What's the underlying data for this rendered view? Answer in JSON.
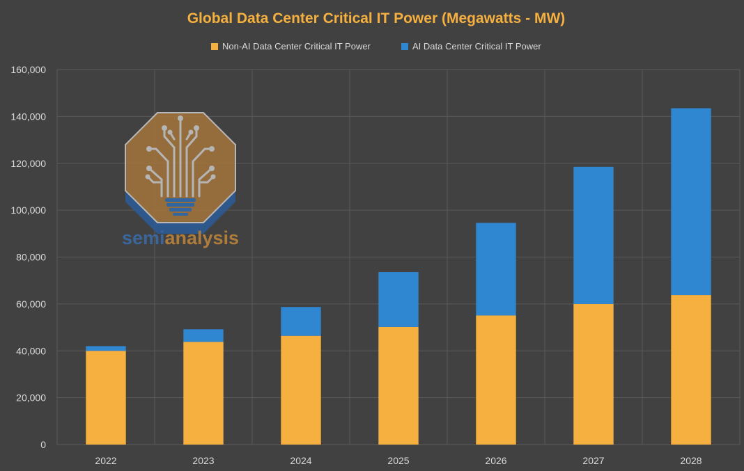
{
  "chart_data": {
    "type": "bar",
    "stacked": true,
    "title": "Global Data Center Critical IT Power (Megawatts - MW)",
    "categories": [
      "2022",
      "2023",
      "2024",
      "2025",
      "2026",
      "2027",
      "2028"
    ],
    "series": [
      {
        "name": "Non-AI Data Center Critical IT Power",
        "color": "#f6b03f",
        "values": [
          40000,
          43800,
          46400,
          50200,
          55100,
          60000,
          63800
        ]
      },
      {
        "name": "AI Data Center Critical IT Power",
        "color": "#2f87d2",
        "values": [
          2000,
          5400,
          12300,
          23400,
          39500,
          58500,
          79700
        ]
      }
    ],
    "ylim": [
      0,
      160000
    ],
    "yticks": [
      0,
      20000,
      40000,
      60000,
      80000,
      100000,
      120000,
      140000,
      160000
    ],
    "ytick_labels": [
      "0",
      "20,000",
      "40,000",
      "60,000",
      "80,000",
      "100,000",
      "120,000",
      "140,000",
      "160,000"
    ],
    "grid": true,
    "legend_position": "top-center",
    "title_color": "#f6b03f"
  },
  "watermark": {
    "text_part1": "semi",
    "text_part2": "analysis",
    "color1": "#3a6fb0",
    "color2": "#c58a3c"
  }
}
